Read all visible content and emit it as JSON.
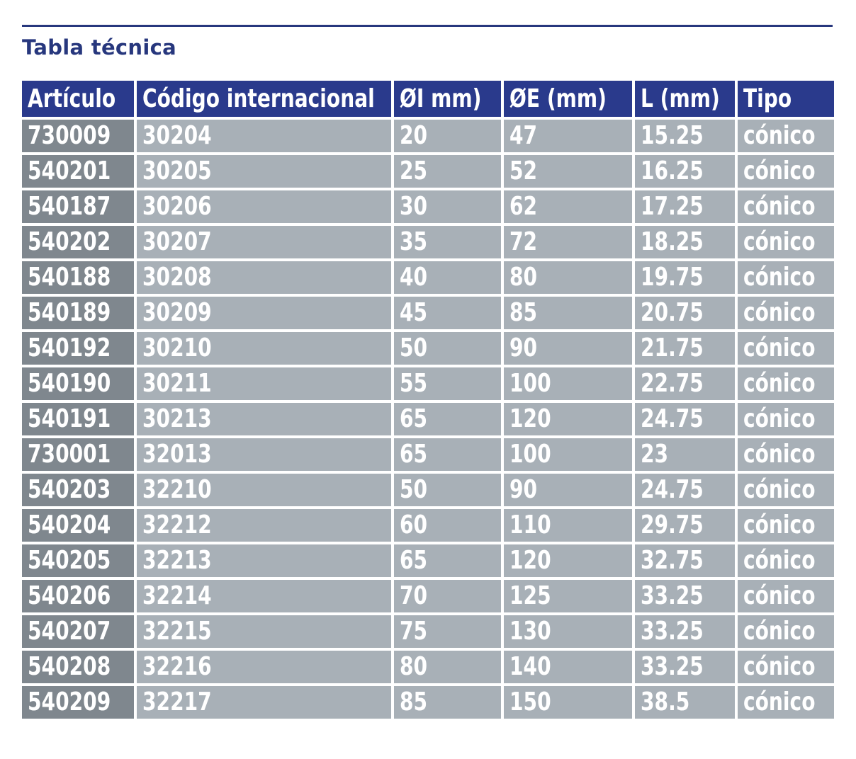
{
  "title": "Tabla técnica",
  "colors": {
    "accent": "#27377d",
    "header_bg": "#2a3a8c",
    "first_col_bg": "#7f878e",
    "cell_bg": "#a8b0b7",
    "text_on_cells": "#ffffff"
  },
  "table": {
    "headers": [
      "Artículo",
      "Código internacional",
      "ØI mm)",
      "ØE (mm)",
      "L (mm)",
      "Tipo"
    ],
    "rows": [
      [
        "730009",
        "30204",
        "20",
        "47",
        "15.25",
        "cónico"
      ],
      [
        "540201",
        "30205",
        "25",
        "52",
        "16.25",
        "cónico"
      ],
      [
        "540187",
        "30206",
        "30",
        "62",
        "17.25",
        "cónico"
      ],
      [
        "540202",
        "30207",
        "35",
        "72",
        "18.25",
        "cónico"
      ],
      [
        "540188",
        "30208",
        "40",
        "80",
        "19.75",
        "cónico"
      ],
      [
        "540189",
        "30209",
        "45",
        "85",
        "20.75",
        "cónico"
      ],
      [
        "540192",
        "30210",
        "50",
        "90",
        "21.75",
        "cónico"
      ],
      [
        "540190",
        "30211",
        "55",
        "100",
        "22.75",
        "cónico"
      ],
      [
        "540191",
        "30213",
        "65",
        "120",
        "24.75",
        "cónico"
      ],
      [
        "730001",
        "32013",
        "65",
        "100",
        "23",
        "cónico"
      ],
      [
        "540203",
        "32210",
        "50",
        "90",
        "24.75",
        "cónico"
      ],
      [
        "540204",
        "32212",
        "60",
        "110",
        "29.75",
        "cónico"
      ],
      [
        "540205",
        "32213",
        "65",
        "120",
        "32.75",
        "cónico"
      ],
      [
        "540206",
        "32214",
        "70",
        "125",
        "33.25",
        "cónico"
      ],
      [
        "540207",
        "32215",
        "75",
        "130",
        "33.25",
        "cónico"
      ],
      [
        "540208",
        "32216",
        "80",
        "140",
        "33.25",
        "cónico"
      ],
      [
        "540209",
        "32217",
        "85",
        "150",
        "38.5",
        "cónico"
      ]
    ]
  }
}
